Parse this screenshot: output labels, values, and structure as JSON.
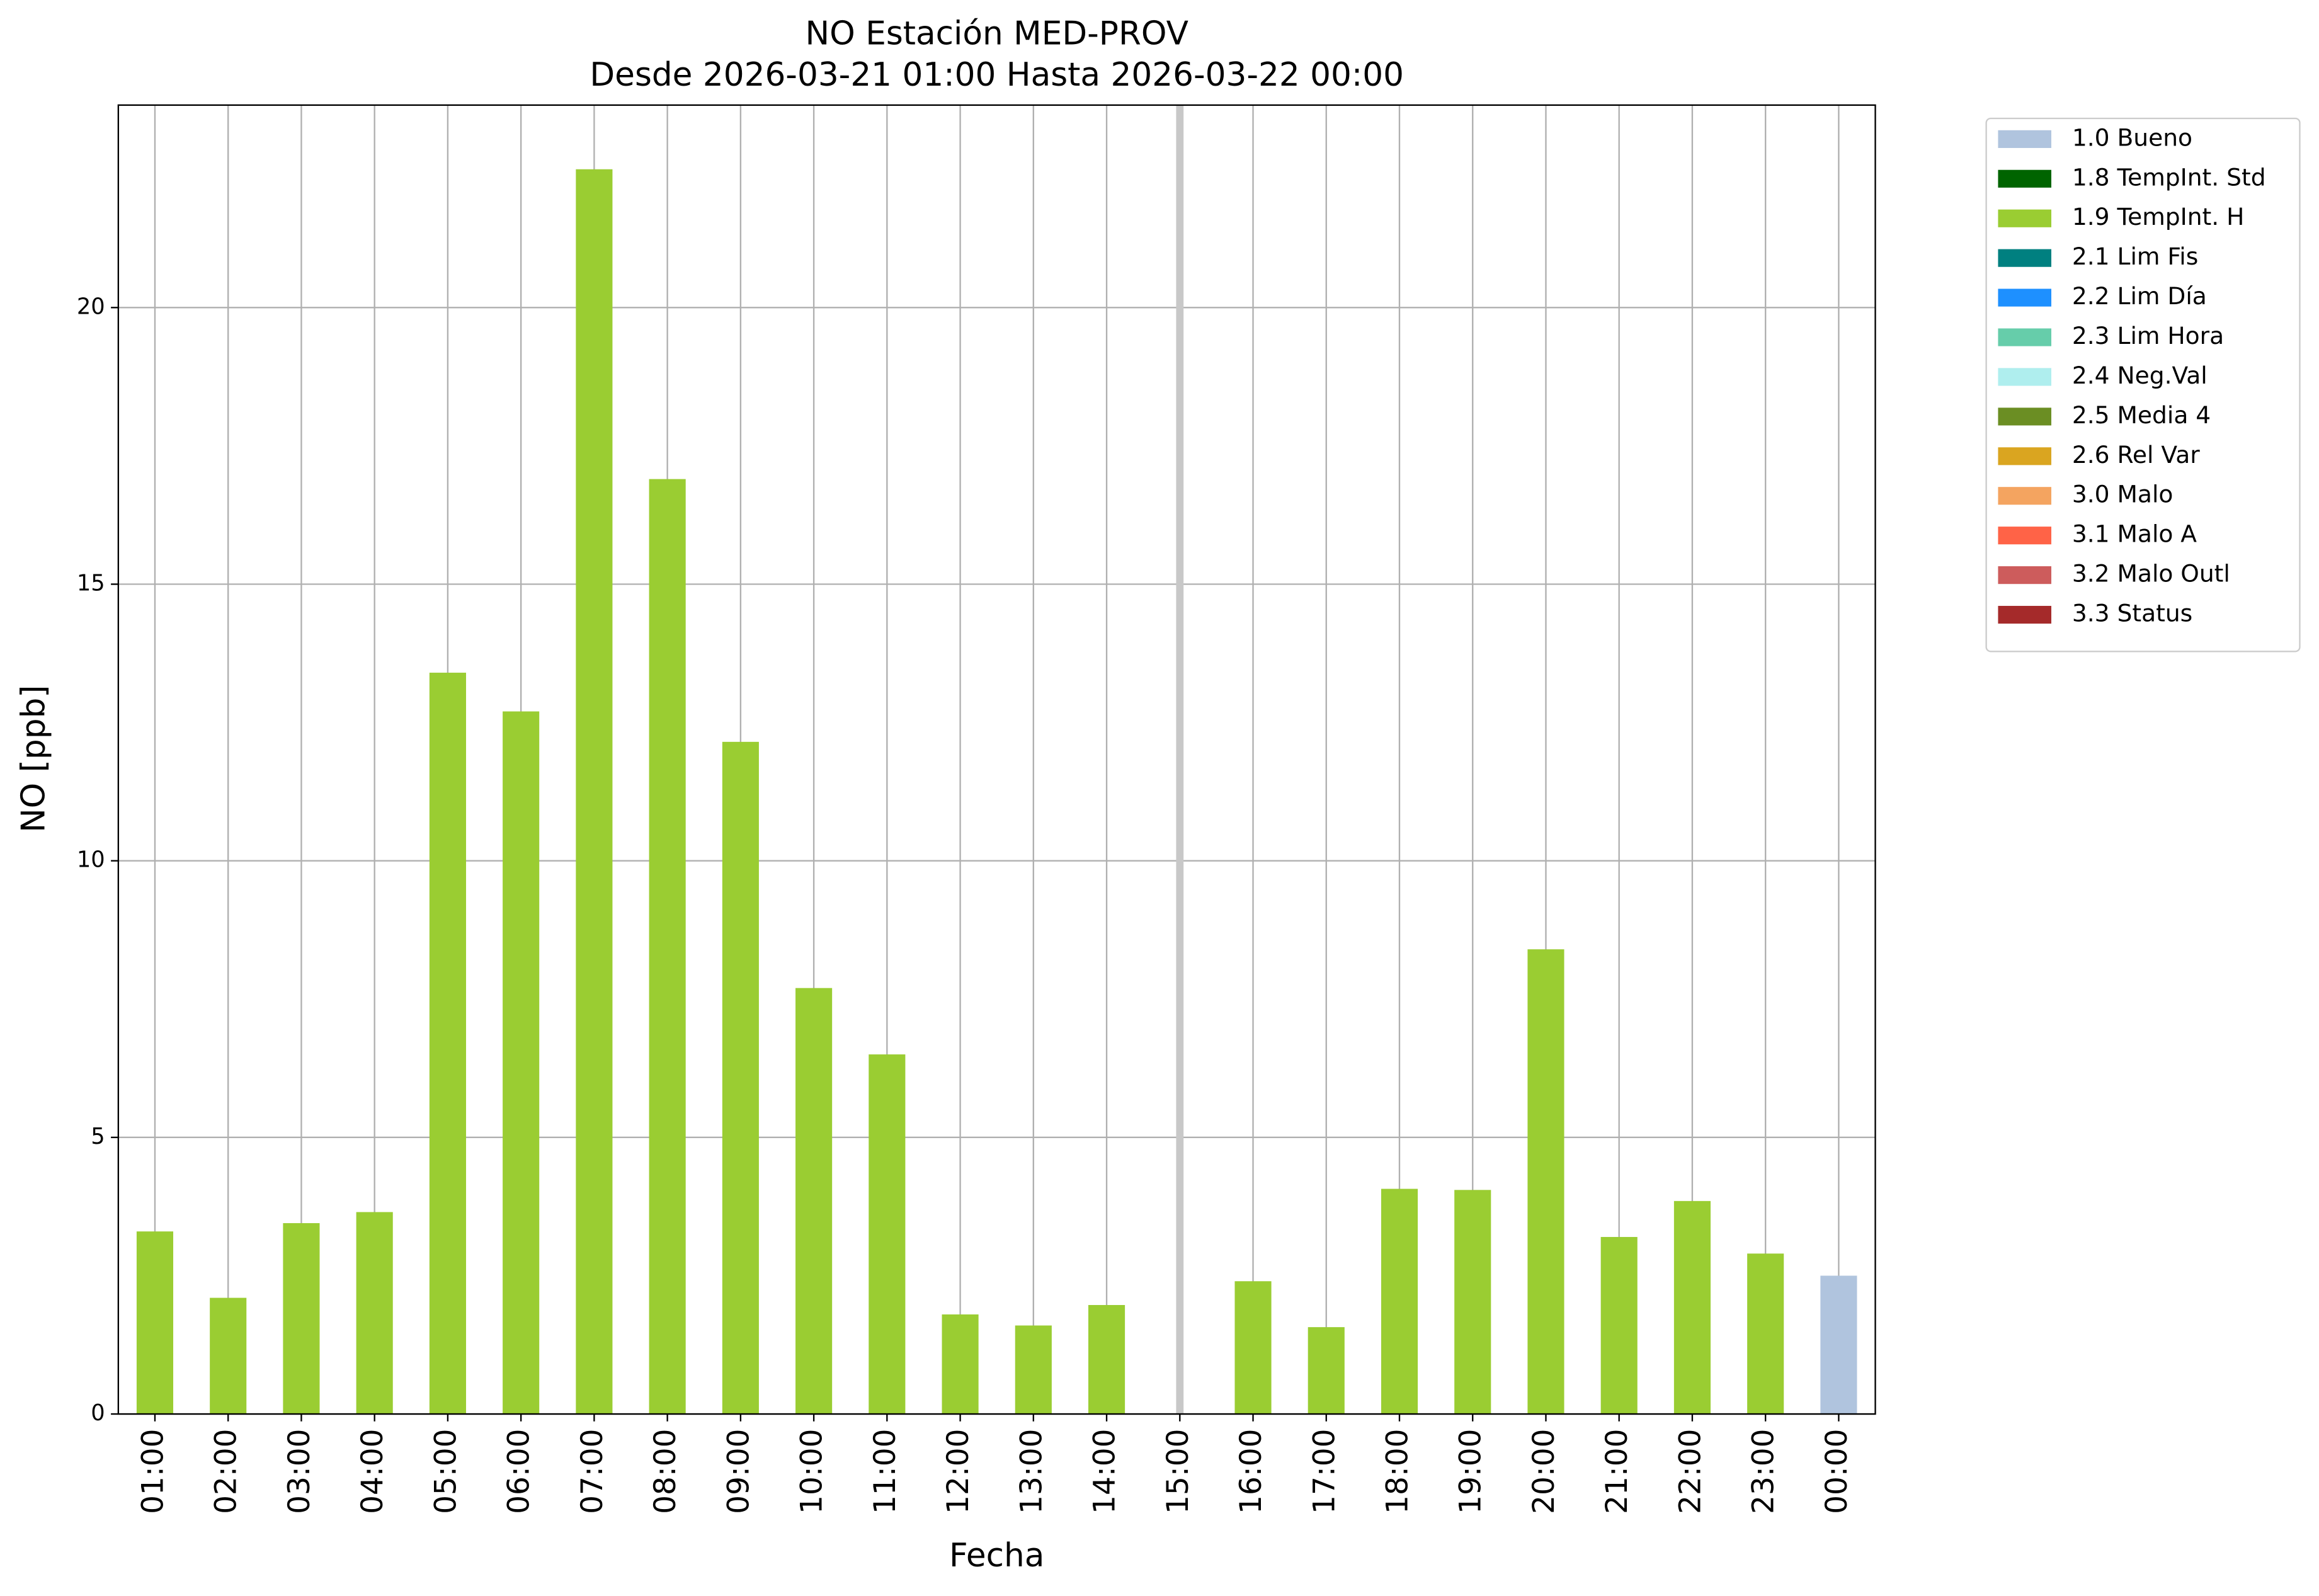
{
  "chart_data": {
    "type": "bar",
    "stacked": true,
    "title": "NO Estación MED-PROV",
    "subtitle": "Desde 2026-03-21 01:00 Hasta 2026-03-22 00:00",
    "x_label": "Fecha",
    "y_label": "NO [ppb]",
    "categories": [
      "01:00",
      "02:00",
      "03:00",
      "04:00",
      "05:00",
      "06:00",
      "07:00",
      "08:00",
      "09:00",
      "10:00",
      "11:00",
      "12:00",
      "13:00",
      "14:00",
      "15:00",
      "16:00",
      "17:00",
      "18:00",
      "19:00",
      "20:00",
      "21:00",
      "22:00",
      "23:00",
      "00:00"
    ],
    "ylim": [
      0,
      23.66
    ],
    "yticks": [
      0,
      5,
      10,
      15,
      20
    ],
    "grid": true,
    "legend": "outside upper right",
    "series": [
      {
        "name": "1.0 Bueno",
        "color": "#b0c4de",
        "values": [
          null,
          null,
          null,
          null,
          null,
          null,
          null,
          null,
          null,
          null,
          null,
          null,
          null,
          null,
          null,
          null,
          null,
          null,
          null,
          null,
          null,
          null,
          null,
          2.5
        ]
      },
      {
        "name": "1.8 TempInt. Std",
        "color": "#006400",
        "values": [
          null,
          null,
          null,
          null,
          null,
          null,
          null,
          null,
          null,
          null,
          null,
          null,
          null,
          null,
          null,
          null,
          null,
          null,
          null,
          null,
          null,
          null,
          null,
          null
        ]
      },
      {
        "name": "1.9 TempInt. H",
        "color": "#9acd32",
        "values": [
          3.3,
          2.1,
          3.45,
          3.65,
          13.4,
          12.7,
          22.5,
          16.9,
          12.15,
          7.7,
          6.5,
          1.8,
          1.6,
          1.97,
          null,
          2.4,
          1.57,
          4.07,
          4.05,
          8.4,
          3.2,
          3.85,
          2.9,
          null
        ]
      },
      {
        "name": "2.1 Lim Fis",
        "color": "#008080",
        "values": [
          null,
          null,
          null,
          null,
          null,
          null,
          null,
          null,
          null,
          null,
          null,
          null,
          null,
          null,
          null,
          null,
          null,
          null,
          null,
          null,
          null,
          null,
          null,
          null
        ]
      },
      {
        "name": "2.2 Lim Día",
        "color": "#1e90ff",
        "values": [
          null,
          null,
          null,
          null,
          null,
          null,
          null,
          null,
          null,
          null,
          null,
          null,
          null,
          null,
          null,
          null,
          null,
          null,
          null,
          null,
          null,
          null,
          null,
          null
        ]
      },
      {
        "name": "2.3 Lim Hora",
        "color": "#66cdaa",
        "values": [
          null,
          null,
          null,
          null,
          null,
          null,
          null,
          null,
          null,
          null,
          null,
          null,
          null,
          null,
          null,
          null,
          null,
          null,
          null,
          null,
          null,
          null,
          null,
          null
        ]
      },
      {
        "name": "2.4 Neg.Val",
        "color": "#afeeee",
        "values": [
          null,
          null,
          null,
          null,
          null,
          null,
          null,
          null,
          null,
          null,
          null,
          null,
          null,
          null,
          null,
          null,
          null,
          null,
          null,
          null,
          null,
          null,
          null,
          null
        ]
      },
      {
        "name": "2.5 Media 4",
        "color": "#6b8e23",
        "values": [
          null,
          null,
          null,
          null,
          null,
          null,
          null,
          null,
          null,
          null,
          null,
          null,
          null,
          null,
          null,
          null,
          null,
          null,
          null,
          null,
          null,
          null,
          null,
          null
        ]
      },
      {
        "name": "2.6 Rel Var",
        "color": "#daa520",
        "values": [
          null,
          null,
          null,
          null,
          null,
          null,
          null,
          null,
          null,
          null,
          null,
          null,
          null,
          null,
          null,
          null,
          null,
          null,
          null,
          null,
          null,
          null,
          null,
          null
        ]
      },
      {
        "name": "3.0 Malo",
        "color": "#f4a460",
        "values": [
          null,
          null,
          null,
          null,
          null,
          null,
          null,
          null,
          null,
          null,
          null,
          null,
          null,
          null,
          null,
          null,
          null,
          null,
          null,
          null,
          null,
          null,
          null,
          null
        ]
      },
      {
        "name": "3.1 Malo A",
        "color": "#ff6347",
        "values": [
          null,
          null,
          null,
          null,
          null,
          null,
          null,
          null,
          null,
          null,
          null,
          null,
          null,
          null,
          null,
          null,
          null,
          null,
          null,
          null,
          null,
          null,
          null,
          null
        ]
      },
      {
        "name": "3.2 Malo Outl",
        "color": "#cd5c5c",
        "values": [
          null,
          null,
          null,
          null,
          null,
          null,
          null,
          null,
          null,
          null,
          null,
          null,
          null,
          null,
          null,
          null,
          null,
          null,
          null,
          null,
          null,
          null,
          null,
          null
        ]
      },
      {
        "name": "3.3 Status",
        "color": "#a52a2a",
        "values": [
          null,
          null,
          null,
          null,
          null,
          null,
          null,
          null,
          null,
          null,
          null,
          null,
          null,
          null,
          null,
          null,
          null,
          null,
          null,
          null,
          null,
          null,
          null,
          null
        ]
      }
    ]
  }
}
